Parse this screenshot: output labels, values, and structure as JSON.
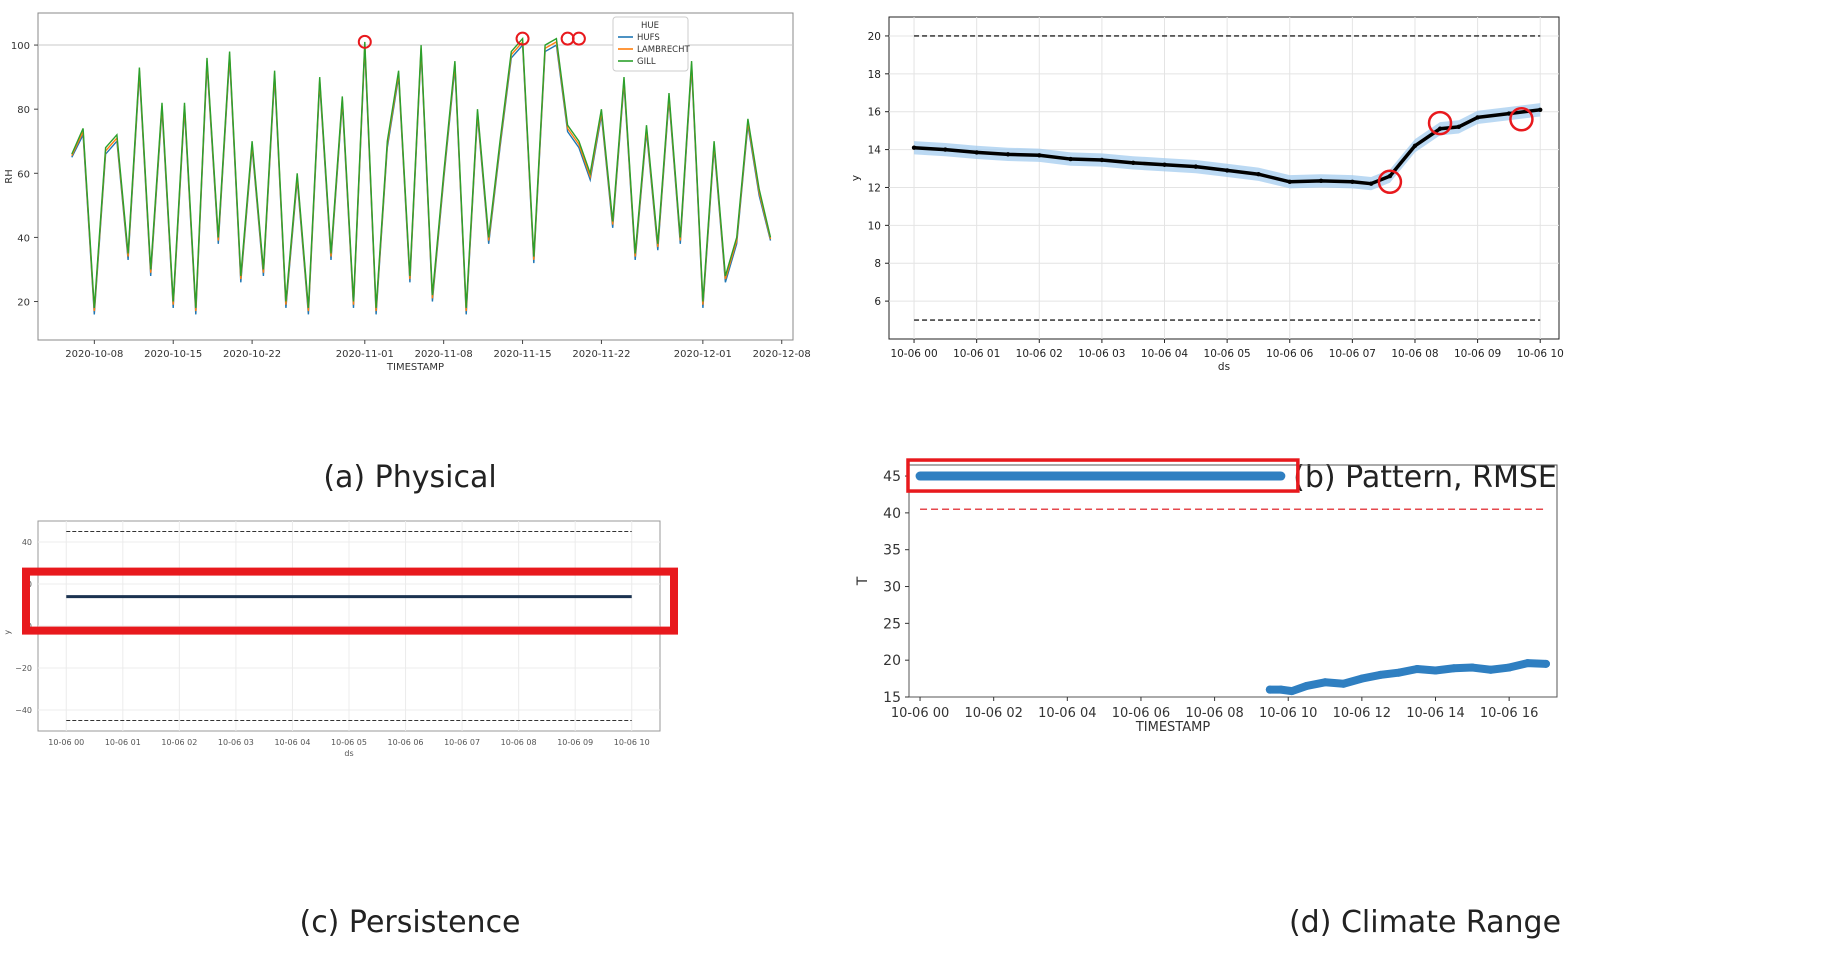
{
  "captions": {
    "a": "(a) Physical",
    "b": "(b) Pattern, RMSE",
    "c": "(c) Persistence",
    "d": "(d) Climate Range"
  },
  "colors": {
    "hufs": "#1f77b4",
    "lambrecht": "#ff7f0e",
    "gill": "#2ca02c",
    "highlight": "#e8191d",
    "observed": "#000000",
    "forecast_band": "#9ec9ee",
    "persist_line": "#1b3350",
    "climate_dots": "#2f7fc1",
    "climate_threshold": "#e5484d"
  },
  "chart_data": [
    {
      "id": "a",
      "type": "line",
      "xlabel": "TIMESTAMP",
      "ylabel": "RH",
      "legend_title": "HUE",
      "legend_position": "top-right",
      "x_range": [
        "2020-10-03",
        "2020-12-09"
      ],
      "ylim": [
        8,
        110
      ],
      "x_ticks": [
        "2020-10-08",
        "2020-10-15",
        "2020-10-22",
        "2020-11-01",
        "2020-11-08",
        "2020-11-15",
        "2020-11-22",
        "2020-12-01",
        "2020-12-08"
      ],
      "y_ticks": [
        20,
        40,
        60,
        80,
        100
      ],
      "reference_line": 100,
      "series": [
        {
          "name": "HUFS",
          "offset": -2
        },
        {
          "name": "LAMBRECHT",
          "offset": -1
        },
        {
          "name": "GILL",
          "offset": 0
        }
      ],
      "x": [
        "2020-10-06",
        "2020-10-07",
        "2020-10-08",
        "2020-10-09",
        "2020-10-10",
        "2020-10-11",
        "2020-10-12",
        "2020-10-13",
        "2020-10-14",
        "2020-10-15",
        "2020-10-16",
        "2020-10-17",
        "2020-10-18",
        "2020-10-19",
        "2020-10-20",
        "2020-10-21",
        "2020-10-22",
        "2020-10-23",
        "2020-10-24",
        "2020-10-25",
        "2020-10-26",
        "2020-10-27",
        "2020-10-28",
        "2020-10-29",
        "2020-10-30",
        "2020-10-31",
        "2020-11-01",
        "2020-11-02",
        "2020-11-03",
        "2020-11-04",
        "2020-11-05",
        "2020-11-06",
        "2020-11-07",
        "2020-11-08",
        "2020-11-09",
        "2020-11-10",
        "2020-11-11",
        "2020-11-12",
        "2020-11-13",
        "2020-11-14",
        "2020-11-15",
        "2020-11-16",
        "2020-11-17",
        "2020-11-18",
        "2020-11-19",
        "2020-11-20",
        "2020-11-21",
        "2020-11-22",
        "2020-11-23",
        "2020-11-24",
        "2020-11-25",
        "2020-11-26",
        "2020-11-27",
        "2020-11-28",
        "2020-11-29",
        "2020-11-30",
        "2020-12-01",
        "2020-12-02",
        "2020-12-03",
        "2020-12-04",
        "2020-12-05",
        "2020-12-06",
        "2020-12-07"
      ],
      "values": [
        66,
        74,
        18,
        68,
        72,
        35,
        93,
        30,
        82,
        20,
        82,
        18,
        96,
        40,
        98,
        28,
        70,
        30,
        92,
        20,
        60,
        18,
        90,
        35,
        84,
        20,
        101,
        18,
        70,
        92,
        28,
        100,
        22,
        60,
        95,
        18,
        80,
        40,
        70,
        98,
        102,
        34,
        100,
        102,
        75,
        70,
        60,
        80,
        45,
        90,
        35,
        75,
        38,
        85,
        40,
        95,
        20,
        70,
        28,
        40,
        77,
        55,
        40
      ],
      "highlights": [
        [
          "2020-11-01",
          101
        ],
        [
          "2020-11-15",
          102
        ],
        [
          "2020-11-19",
          102
        ],
        [
          "2020-11-20",
          102
        ]
      ]
    },
    {
      "id": "b",
      "type": "line",
      "xlabel": "ds",
      "ylabel": "y",
      "x_range": [
        -0.4,
        10.3
      ],
      "ylim": [
        4,
        21
      ],
      "x_ticks": [
        "10-06 00",
        "10-06 01",
        "10-06 02",
        "10-06 03",
        "10-06 04",
        "10-06 05",
        "10-06 06",
        "10-06 07",
        "10-06 08",
        "10-06 09",
        "10-06 10"
      ],
      "y_ticks": [
        6,
        8,
        10,
        12,
        14,
        16,
        18,
        20
      ],
      "upper_limit": 20,
      "lower_limit": 5,
      "x": [
        0,
        0.5,
        1,
        1.5,
        2,
        2.5,
        3,
        3.5,
        4,
        4.5,
        5,
        5.5,
        6,
        6.5,
        7,
        7.3,
        7.6,
        8,
        8.4,
        8.7,
        9,
        9.5,
        10
      ],
      "values": [
        14.1,
        14.0,
        13.85,
        13.75,
        13.7,
        13.5,
        13.45,
        13.3,
        13.2,
        13.1,
        12.9,
        12.7,
        12.3,
        12.35,
        12.3,
        12.2,
        12.6,
        14.2,
        15.1,
        15.2,
        15.7,
        15.9,
        16.1
      ],
      "highlights": [
        [
          7.6,
          12.3
        ],
        [
          8.4,
          15.4
        ],
        [
          9.7,
          15.6
        ]
      ]
    },
    {
      "id": "c",
      "type": "line",
      "xlabel": "ds",
      "ylabel": "y",
      "x_range": [
        -0.5,
        10.5
      ],
      "ylim": [
        -50,
        50
      ],
      "x_ticks": [
        "10-06 00",
        "10-06 01",
        "10-06 02",
        "10-06 03",
        "10-06 04",
        "10-06 05",
        "10-06 06",
        "10-06 07",
        "10-06 08",
        "10-06 09",
        "10-06 10"
      ],
      "y_ticks": [
        -40,
        -20,
        0,
        20,
        40
      ],
      "upper_limit": 45,
      "lower_limit": -45,
      "constant_value": 14
    },
    {
      "id": "d",
      "type": "scatter",
      "xlabel": "TIMESTAMP",
      "ylabel": "T",
      "x_range": [
        -0.3,
        17.3
      ],
      "ylim": [
        15,
        46.5
      ],
      "x_ticks": [
        "10-06 00",
        "10-06 02",
        "10-06 04",
        "10-06 06",
        "10-06 08",
        "10-06 10",
        "10-06 12",
        "10-06 14",
        "10-06 16"
      ],
      "y_ticks": [
        15,
        20,
        25,
        30,
        35,
        40,
        45
      ],
      "threshold": 40.5,
      "stuck_segment": {
        "x": [
          0,
          9.8
        ],
        "value": 45
      },
      "x": [
        9.5,
        9.8,
        10.1,
        10.5,
        11,
        11.5,
        12,
        12.5,
        13,
        13.5,
        14,
        14.5,
        15,
        15.5,
        16,
        16.5,
        17
      ],
      "values": [
        16,
        16,
        15.8,
        16.5,
        17,
        16.8,
        17.5,
        18,
        18.3,
        18.8,
        18.6,
        18.9,
        19,
        18.7,
        19,
        19.6,
        19.5
      ]
    }
  ]
}
